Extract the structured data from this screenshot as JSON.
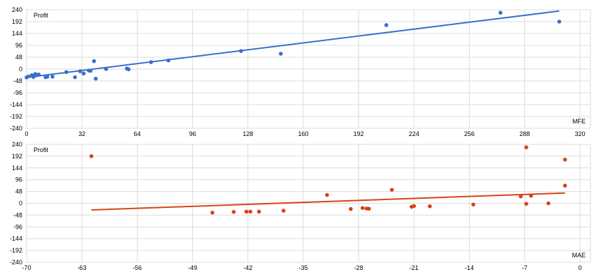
{
  "chart_data": [
    {
      "type": "scatter",
      "ylabel": "Profit",
      "xlabel": "MFE",
      "xlim": [
        0,
        320
      ],
      "ylim": [
        -240,
        240
      ],
      "xticks": [
        0,
        32,
        64,
        96,
        128,
        160,
        192,
        224,
        256,
        288,
        320
      ],
      "yticks": [
        240,
        192,
        144,
        96,
        48,
        0,
        -48,
        -96,
        -144,
        -192,
        -240
      ],
      "grid": true,
      "color": "#3a6fcd",
      "points": [
        {
          "x": 0,
          "y": -34
        },
        {
          "x": 1,
          "y": -30
        },
        {
          "x": 3,
          "y": -25
        },
        {
          "x": 4,
          "y": -32
        },
        {
          "x": 5,
          "y": -20
        },
        {
          "x": 6,
          "y": -25
        },
        {
          "x": 7,
          "y": -22
        },
        {
          "x": 11,
          "y": -33
        },
        {
          "x": 12,
          "y": -31
        },
        {
          "x": 15,
          "y": -31
        },
        {
          "x": 23,
          "y": -12
        },
        {
          "x": 28,
          "y": -33
        },
        {
          "x": 31,
          "y": -9
        },
        {
          "x": 33,
          "y": -18
        },
        {
          "x": 36,
          "y": -6
        },
        {
          "x": 37,
          "y": -7
        },
        {
          "x": 39,
          "y": 32
        },
        {
          "x": 40,
          "y": -39
        },
        {
          "x": 46,
          "y": 0
        },
        {
          "x": 58,
          "y": 2
        },
        {
          "x": 59,
          "y": -1
        },
        {
          "x": 72,
          "y": 28
        },
        {
          "x": 82,
          "y": 35
        },
        {
          "x": 124,
          "y": 73
        },
        {
          "x": 147,
          "y": 62
        },
        {
          "x": 208,
          "y": 178
        },
        {
          "x": 274,
          "y": 228
        },
        {
          "x": 308,
          "y": 192
        }
      ],
      "trendline": {
        "x": [
          0,
          308
        ],
        "y": [
          -34,
          235
        ]
      }
    },
    {
      "type": "scatter",
      "ylabel": "Profit",
      "xlabel": "MAE",
      "xlim": [
        -70,
        0
      ],
      "ylim": [
        -240,
        240
      ],
      "xticks": [
        -70,
        -63,
        -56,
        -49,
        -42,
        -35,
        -28,
        -21,
        -14,
        -7,
        0
      ],
      "yticks": [
        240,
        192,
        144,
        96,
        48,
        0,
        -48,
        -96,
        -144,
        -192,
        -240
      ],
      "grid": true,
      "color": "#d84315",
      "points": [
        {
          "x": -61.8,
          "y": 192
        },
        {
          "x": -46.5,
          "y": -38
        },
        {
          "x": -43.8,
          "y": -35
        },
        {
          "x": -42.2,
          "y": -34
        },
        {
          "x": -41.7,
          "y": -34
        },
        {
          "x": -40.6,
          "y": -34
        },
        {
          "x": -37.5,
          "y": -30
        },
        {
          "x": -32,
          "y": 34
        },
        {
          "x": -29,
          "y": -23
        },
        {
          "x": -27.5,
          "y": -19
        },
        {
          "x": -27,
          "y": -21
        },
        {
          "x": -26.7,
          "y": -22
        },
        {
          "x": -23.8,
          "y": 55
        },
        {
          "x": -21.3,
          "y": -14
        },
        {
          "x": -21,
          "y": -11
        },
        {
          "x": -19,
          "y": -12
        },
        {
          "x": -13.5,
          "y": -5
        },
        {
          "x": -7.5,
          "y": 28
        },
        {
          "x": -6.8,
          "y": 228
        },
        {
          "x": -6.8,
          "y": -2
        },
        {
          "x": -6.2,
          "y": 31
        },
        {
          "x": -4,
          "y": 0
        },
        {
          "x": -1.9,
          "y": 72
        },
        {
          "x": -1.9,
          "y": 178
        }
      ],
      "trendline": {
        "x": [
          -61.8,
          -1.9
        ],
        "y": [
          -27,
          42
        ]
      }
    }
  ]
}
